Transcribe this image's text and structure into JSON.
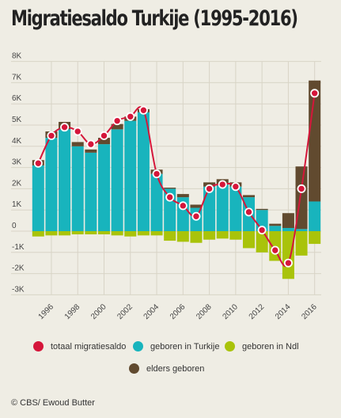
{
  "title": "Migratiesaldo Turkije (1995-2016)",
  "credit": "© CBS/ Ewoud Butter",
  "colors": {
    "background": "#efede4",
    "totaal": "#d5163a",
    "turkije": "#18b4bd",
    "ndl": "#a9c30a",
    "elders": "#614a2f",
    "grid": "#d8d4c6"
  },
  "chart_data": {
    "type": "bar",
    "title": "Migratiesaldo Turkije (1995-2016)",
    "stacked": true,
    "years": [
      1995,
      1996,
      1997,
      1998,
      1999,
      2000,
      2001,
      2002,
      2003,
      2004,
      2005,
      2006,
      2007,
      2008,
      2009,
      2010,
      2011,
      2012,
      2013,
      2014,
      2015,
      2016
    ],
    "x_tick_labels": [
      "1996",
      "1998",
      "2000",
      "2002",
      "2004",
      "2006",
      "2008",
      "2010",
      "2012",
      "2014",
      "2016"
    ],
    "y_tick_labels": [
      "8K",
      "7K",
      "6K",
      "5K",
      "4K",
      "3K",
      "2K",
      "1K",
      "0",
      "-1K",
      "-2K",
      "-3K"
    ],
    "ylim": [
      -3000,
      8000
    ],
    "grid": true,
    "legend_position": "bottom",
    "series": [
      {
        "name": "geboren in Turkije",
        "kind": "bar",
        "values": [
          3100,
          4400,
          4800,
          4000,
          3700,
          4100,
          4800,
          5200,
          5600,
          2700,
          2000,
          1600,
          1100,
          2100,
          2200,
          2100,
          1600,
          1000,
          250,
          150,
          100,
          1400
        ]
      },
      {
        "name": "geboren in Ndl",
        "kind": "bar",
        "values": [
          -250,
          -200,
          -200,
          -150,
          -150,
          -150,
          -200,
          -250,
          -200,
          -200,
          -450,
          -500,
          -550,
          -400,
          -350,
          -400,
          -800,
          -1000,
          -1400,
          -2250,
          -1150,
          -600
        ]
      },
      {
        "name": "elders geboren",
        "kind": "bar",
        "values": [
          250,
          300,
          350,
          200,
          150,
          300,
          250,
          200,
          150,
          200,
          50,
          150,
          150,
          200,
          250,
          200,
          100,
          50,
          100,
          700,
          2950,
          5700
        ]
      },
      {
        "name": "totaal migratiesaldo",
        "kind": "line",
        "values": [
          3200,
          4500,
          4900,
          4700,
          4100,
          4500,
          5200,
          5400,
          5700,
          2700,
          1600,
          1200,
          700,
          2000,
          2200,
          2100,
          900,
          50,
          -900,
          -1500,
          2000,
          6500
        ]
      }
    ]
  }
}
